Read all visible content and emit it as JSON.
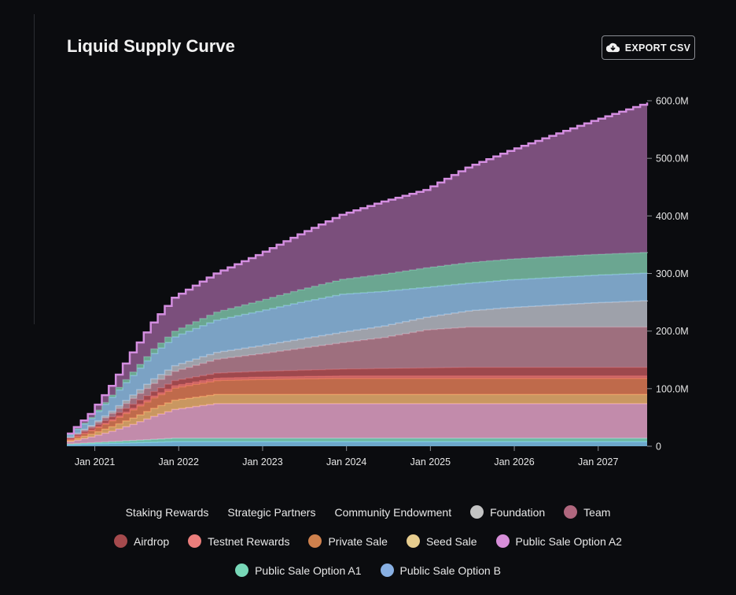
{
  "card": {
    "title": "Liquid Supply Curve",
    "export_label": "EXPORT CSV",
    "export_icon": "cloud-download-icon"
  },
  "chart_data": {
    "type": "area",
    "stacked": true,
    "title": "Liquid Supply Curve",
    "xlabel": "",
    "ylabel": "",
    "x_range": [
      "2020-09",
      "2027-08"
    ],
    "ylim": [
      0,
      600000000
    ],
    "y_ticks": [
      "0",
      "100.0M",
      "200.0M",
      "300.0M",
      "400.0M",
      "500.0M",
      "600.0M"
    ],
    "x_ticks": [
      "Jan 2021",
      "Jan 2022",
      "Jan 2023",
      "Jan 2024",
      "Jan 2025",
      "Jan 2026",
      "Jan 2027"
    ],
    "grid": false,
    "legend_position": "bottom",
    "sample_dates": [
      "2020-09",
      "2020-12",
      "2021-03",
      "2021-06",
      "2021-09",
      "2021-12",
      "2022-06",
      "2022-12",
      "2023-06",
      "2023-12",
      "2024-06",
      "2024-12",
      "2025-06",
      "2025-12",
      "2026-06",
      "2026-12",
      "2027-08"
    ],
    "series": [
      {
        "name": "Public Sale Option B",
        "color": "#7fc4ec",
        "values_M": [
          3,
          4,
          5,
          6,
          7,
          8,
          8,
          8,
          8,
          8,
          8,
          8,
          8,
          8,
          8,
          8,
          8
        ]
      },
      {
        "name": "Public Sale Option A1",
        "color": "#7dd6bd",
        "values_M": [
          1,
          2,
          3,
          4,
          5,
          6,
          6,
          6,
          6,
          6,
          6,
          6,
          6,
          6,
          6,
          6,
          6
        ]
      },
      {
        "name": "Public Sale Option A2",
        "color": "#e3a2c7",
        "values_M": [
          4,
          10,
          18,
          28,
          40,
          50,
          60,
          60,
          60,
          60,
          60,
          60,
          60,
          60,
          60,
          60,
          60
        ]
      },
      {
        "name": "Seed Sale",
        "color": "#ebb070",
        "values_M": [
          2,
          5,
          8,
          11,
          14,
          16,
          16,
          16,
          16,
          16,
          16,
          16,
          16,
          16,
          16,
          16,
          16
        ]
      },
      {
        "name": "Private Sale",
        "color": "#df7b56",
        "values_M": [
          2,
          6,
          10,
          14,
          18,
          21,
          24,
          26,
          27,
          28,
          28,
          28,
          28,
          28,
          28,
          28,
          28
        ]
      },
      {
        "name": "Testnet Rewards",
        "color": "#e5726f",
        "values_M": [
          0,
          1,
          2,
          3,
          3,
          4,
          4,
          4,
          4,
          4,
          4,
          4,
          4,
          4,
          4,
          4,
          4
        ]
      },
      {
        "name": "Airdrop",
        "color": "#b85458",
        "values_M": [
          2,
          3,
          5,
          7,
          8,
          9,
          9,
          10,
          11,
          12,
          13,
          14,
          15,
          15,
          15,
          15,
          15
        ]
      },
      {
        "name": "Team",
        "color": "#b98192",
        "values_M": [
          1,
          3,
          6,
          10,
          14,
          16,
          24,
          30,
          38,
          46,
          54,
          66,
          70,
          70,
          70,
          70,
          70
        ]
      },
      {
        "name": "Foundation",
        "color": "#b9bcc6",
        "values_M": [
          1,
          2,
          4,
          6,
          8,
          10,
          12,
          14,
          16,
          18,
          20,
          22,
          28,
          34,
          38,
          42,
          46
        ]
      },
      {
        "name": "Community Endowment",
        "color": "#8fbde4",
        "values_M": [
          4,
          12,
          24,
          34,
          44,
          50,
          56,
          60,
          64,
          66,
          60,
          52,
          48,
          48,
          48,
          48,
          48
        ]
      },
      {
        "name": "Strategic Partners",
        "color": "#7dc2a8",
        "values_M": [
          1,
          2,
          4,
          6,
          8,
          10,
          14,
          18,
          22,
          26,
          30,
          34,
          36,
          36,
          36,
          36,
          36
        ]
      },
      {
        "name": "Staking Rewards",
        "color": "#8f5c8f",
        "line_color": "#d48ee0",
        "values_M": [
          1,
          6,
          16,
          34,
          46,
          58,
          67,
          80,
          96,
          112,
          126,
          135,
          165,
          188,
          210,
          232,
          260
        ]
      }
    ],
    "legend": [
      [
        {
          "label": "Staking Rewards",
          "swatch": ""
        },
        {
          "label": "Strategic Partners",
          "swatch": ""
        },
        {
          "label": "Community Endowment",
          "swatch": ""
        },
        {
          "label": "Foundation",
          "swatch": "#c3c3c3"
        },
        {
          "label": "Team",
          "swatch": "#b0677e"
        }
      ],
      [
        {
          "label": "Airdrop",
          "swatch": "#a54a4d"
        },
        {
          "label": "Testnet Rewards",
          "swatch": "#eb7e7c"
        },
        {
          "label": "Private Sale",
          "swatch": "#cf814d"
        },
        {
          "label": "Seed Sale",
          "swatch": "#e7cd8f"
        },
        {
          "label": "Public Sale Option A2",
          "swatch": "#d78ed9"
        }
      ],
      [
        {
          "label": "Public Sale Option A1",
          "swatch": "#78d8b8"
        },
        {
          "label": "Public Sale Option B",
          "swatch": "#88b0e3"
        }
      ]
    ]
  }
}
